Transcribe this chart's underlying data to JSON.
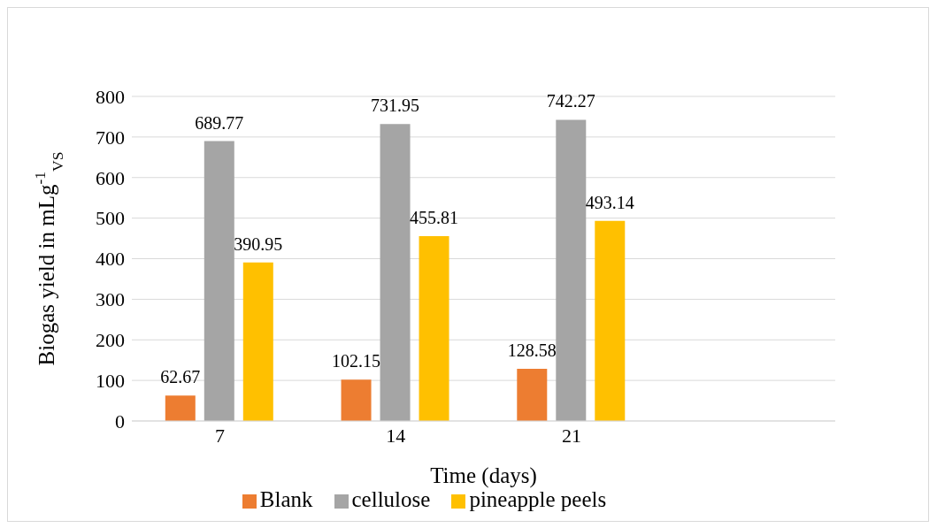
{
  "chart_data": {
    "type": "bar",
    "xlabel": "Time (days)",
    "ylabel": "Biogas yield in mLg$^{-1}$$_{VS}$",
    "categories": [
      "7",
      "14",
      "21",
      null
    ],
    "series": [
      {
        "name": "Blank",
        "color": "#ed7d31",
        "values": [
          62.67,
          102.15,
          128.58,
          null
        ]
      },
      {
        "name": "cellulose",
        "color": "#a5a5a5",
        "values": [
          689.77,
          731.95,
          742.27,
          null
        ]
      },
      {
        "name": "pineapple peels",
        "color": "#ffc000",
        "values": [
          390.95,
          455.81,
          493.14,
          null
        ]
      }
    ],
    "ylim": [
      0,
      800
    ],
    "yticks": [
      0,
      100,
      200,
      300,
      400,
      500,
      600,
      700,
      800
    ],
    "grid": "y",
    "legend": "bottom",
    "data_labels": true
  }
}
